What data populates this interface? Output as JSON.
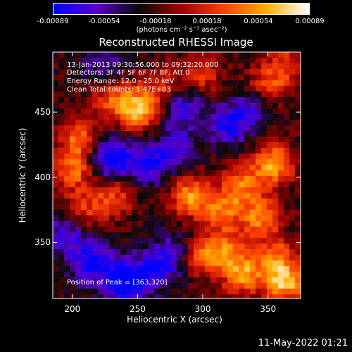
{
  "colorbar": {
    "ticks": [
      "-0.00089",
      "-0.00054",
      "-0.00018",
      "0.00018",
      "0.00054",
      "0.00089"
    ],
    "unit_label": "(photons cm⁻² s⁻¹ asec⁻²)",
    "colors": [
      "#0000ff",
      "#5a00c8",
      "#0a0a0a",
      "#a00000",
      "#ff4000",
      "#ffb000",
      "#ffffff"
    ]
  },
  "title": "Reconstructed RHESSI Image",
  "annotations": {
    "time": "13-Jan-2013 09:30:56.000 to 09:32:20.000",
    "detectors": "Detectors: 3F 4F 5F 6F 7F 8F, Att 0",
    "energy": "Energy Range: 12.0 - 25.0 keV",
    "clean": "Clean     Total counts: 1.47E+03",
    "peak": "Position of Peak = [363,320]"
  },
  "timestamp": "11-May-2022 01:21",
  "chart_data": {
    "type": "heatmap",
    "title": "Reconstructed RHESSI Image",
    "xlabel": "Heliocentric X (arcsec)",
    "ylabel": "Heliocentric Y (arcsec)",
    "xlim": [
      185,
      375
    ],
    "ylim": [
      307,
      496
    ],
    "xticks": [
      "200",
      "250",
      "300",
      "350"
    ],
    "yticks": [
      "350",
      "400",
      "450"
    ],
    "x_tick_values": [
      200,
      250,
      300,
      350
    ],
    "y_tick_values": [
      350,
      400,
      450
    ],
    "value_range": [
      -0.00089,
      0.00089
    ],
    "peak_position": [
      363,
      320
    ],
    "blobs": [
      {
        "x": 250,
        "y": 452,
        "value": 0.00085
      },
      {
        "x": 230,
        "y": 462,
        "value": 0.0005
      },
      {
        "x": 205,
        "y": 430,
        "value": 0.0006
      },
      {
        "x": 200,
        "y": 405,
        "value": 0.0006
      },
      {
        "x": 232,
        "y": 385,
        "value": 0.00045
      },
      {
        "x": 210,
        "y": 375,
        "value": 0.0004
      },
      {
        "x": 300,
        "y": 478,
        "value": 0.0004
      },
      {
        "x": 350,
        "y": 470,
        "value": 0.00055
      },
      {
        "x": 365,
        "y": 488,
        "value": 0.0004
      },
      {
        "x": 355,
        "y": 410,
        "value": 0.0008
      },
      {
        "x": 330,
        "y": 395,
        "value": 0.0006
      },
      {
        "x": 290,
        "y": 385,
        "value": 0.0007
      },
      {
        "x": 315,
        "y": 375,
        "value": 0.0006
      },
      {
        "x": 345,
        "y": 370,
        "value": 0.00065
      },
      {
        "x": 300,
        "y": 340,
        "value": 0.0006
      },
      {
        "x": 330,
        "y": 325,
        "value": 0.0007
      },
      {
        "x": 320,
        "y": 345,
        "value": 0.0005
      },
      {
        "x": 363,
        "y": 320,
        "value": 0.00089
      },
      {
        "x": 355,
        "y": 340,
        "value": 0.0005
      },
      {
        "x": 270,
        "y": 470,
        "value": 0.0004
      },
      {
        "x": 230,
        "y": 415,
        "value": -0.0008
      },
      {
        "x": 260,
        "y": 410,
        "value": -0.0006
      },
      {
        "x": 240,
        "y": 320,
        "value": -0.0009
      },
      {
        "x": 215,
        "y": 335,
        "value": -0.0007
      },
      {
        "x": 265,
        "y": 330,
        "value": -0.0006
      },
      {
        "x": 195,
        "y": 355,
        "value": -0.0005
      },
      {
        "x": 285,
        "y": 455,
        "value": -0.0005
      },
      {
        "x": 320,
        "y": 440,
        "value": -0.0006
      },
      {
        "x": 280,
        "y": 425,
        "value": -0.0004
      },
      {
        "x": 225,
        "y": 485,
        "value": -0.0004
      },
      {
        "x": 340,
        "y": 455,
        "value": -0.0004
      },
      {
        "x": 280,
        "y": 345,
        "value": -0.0003
      }
    ]
  }
}
